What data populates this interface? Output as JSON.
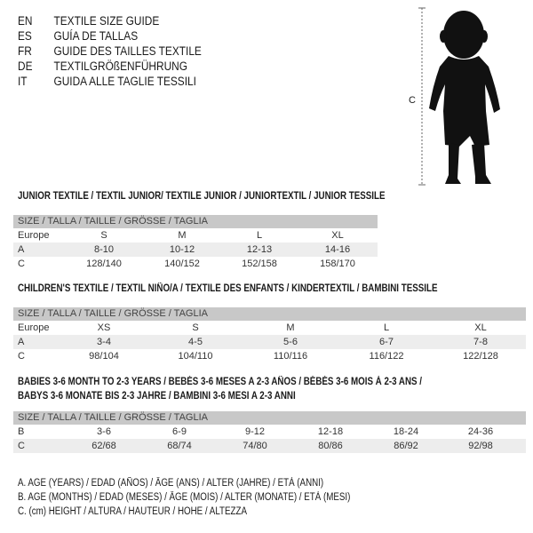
{
  "languages": [
    {
      "code": "EN",
      "text": "TEXTILE SIZE GUIDE"
    },
    {
      "code": "ES",
      "text": "GUÍA DE TALLAS"
    },
    {
      "code": "FR",
      "text": "GUIDE DES TAILLES TEXTILE"
    },
    {
      "code": "DE",
      "text": "TEXTILGRÖßENFÜHRUNG"
    },
    {
      "code": "IT",
      "text": "GUIDA ALLE TAGLIE TESSILI"
    }
  ],
  "figure": {
    "measure_label": "C"
  },
  "size_header": "SIZE / TALLA / TAILLE / GRÖSSE / TAGLIA",
  "junior": {
    "title": "JUNIOR TEXTILE / TEXTIL JUNIOR/ TEXTILE JUNIOR / JUNIORTEXTIL / JUNIOR TESSILE",
    "rows": [
      {
        "label": "Europe",
        "values": [
          "S",
          "M",
          "L",
          "XL"
        ]
      },
      {
        "label": "A",
        "values": [
          "8-10",
          "10-12",
          "12-13",
          "14-16"
        ]
      },
      {
        "label": "C",
        "values": [
          "128/140",
          "140/152",
          "152/158",
          "158/170"
        ]
      }
    ]
  },
  "children": {
    "title": "CHILDREN'S TEXTILE / TEXTIL NIÑO/A / TEXTILE DES ENFANTS / KINDERTEXTIL / BAMBINI TESSILE",
    "rows": [
      {
        "label": "Europe",
        "values": [
          "XS",
          "S",
          "M",
          "L",
          "XL"
        ]
      },
      {
        "label": "A",
        "values": [
          "3-4",
          "4-5",
          "5-6",
          "6-7",
          "7-8"
        ]
      },
      {
        "label": "C",
        "values": [
          "98/104",
          "104/110",
          "110/116",
          "116/122",
          "122/128"
        ]
      }
    ]
  },
  "babies": {
    "title_line1": "BABIES 3-6 MONTH TO 2-3 YEARS / BEBÉS 3-6 MESES A 2-3 AÑOS / BÉBÉS 3-6 MOIS À 2-3 ANS /",
    "title_line2": "BABYS 3-6 MONATE BIS 2-3 JAHRE / BAMBINI 3-6 MESI A 2-3 ANNI",
    "rows": [
      {
        "label": "B",
        "values": [
          "3-6",
          "6-9",
          "9-12",
          "12-18",
          "18-24",
          "24-36"
        ]
      },
      {
        "label": "C",
        "values": [
          "62/68",
          "68/74",
          "74/80",
          "80/86",
          "86/92",
          "92/98"
        ]
      }
    ]
  },
  "legend": [
    "A. AGE (YEARS) / EDAD (AÑOS) / ÂGE (ANS) / ALTER (JAHRE) / ETÀ (ANNI)",
    "B. AGE (MONTHS) / EDAD (MESES) / ÂGE (MOIS) / ALTER (MONATE) / ETÀ (MESI)",
    "C. (cm) HEIGHT / ALTURA / HAUTEUR / HÖHE / ALTEZZA"
  ]
}
